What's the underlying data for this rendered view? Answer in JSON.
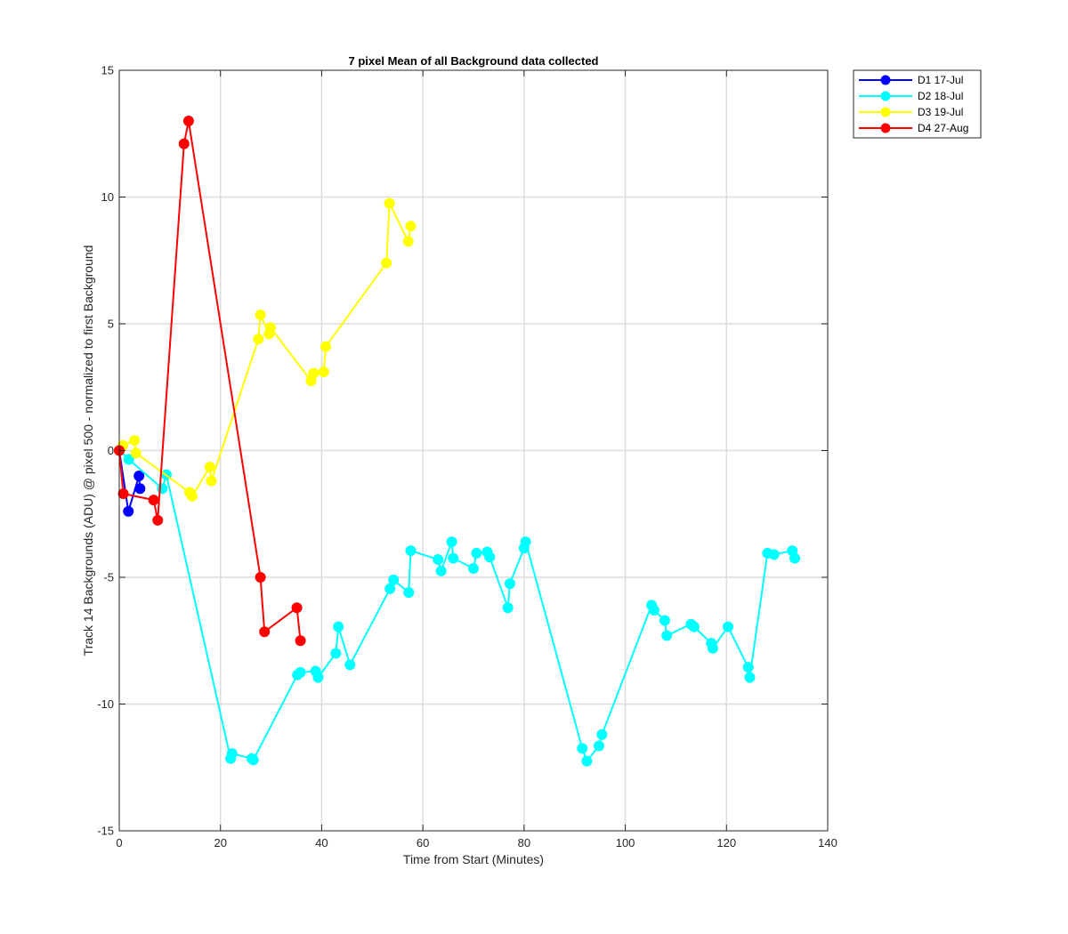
{
  "chart_data": {
    "type": "line",
    "title": "7 pixel Mean of all Background data collected",
    "xlabel": "Time from Start (Minutes)",
    "ylabel": "Track 14 Backgrounds (ADU) @ pixel 500 - normalized to first Background",
    "xlim": [
      0,
      140
    ],
    "ylim": [
      -15,
      15
    ],
    "xticks": [
      0,
      20,
      40,
      60,
      80,
      100,
      120,
      140
    ],
    "yticks": [
      -15,
      -10,
      -5,
      0,
      5,
      10,
      15
    ],
    "grid": true,
    "legend_position": "outside-top-right",
    "series": [
      {
        "name": "D1 17-Jul",
        "color": "#0000ff",
        "x": [
          0,
          1.8,
          3.9,
          4.1
        ],
        "y": [
          0,
          -2.4,
          -1.0,
          -1.5
        ]
      },
      {
        "name": "D2 18-Jul",
        "color": "#00ffff",
        "x": [
          0,
          1.9,
          8.5,
          9.3,
          22.0,
          22.3,
          26.2,
          26.5,
          35.2,
          35.8,
          38.8,
          39.3,
          42.8,
          43.3,
          45.6,
          53.5,
          54.2,
          57.2,
          57.6,
          63.0,
          63.6,
          65.7,
          66.0,
          70.0,
          70.6,
          72.7,
          73.2,
          76.8,
          77.2,
          80.0,
          80.3,
          91.5,
          92.4,
          94.8,
          95.4,
          105.2,
          105.7,
          107.8,
          108.2,
          113.0,
          113.6,
          117.0,
          117.3,
          120.3,
          124.3,
          124.6,
          128.1,
          129.4,
          133.0,
          133.5
        ],
        "y": [
          0,
          -0.35,
          -1.5,
          -0.95,
          -12.15,
          -11.95,
          -12.15,
          -12.2,
          -8.85,
          -8.75,
          -8.7,
          -8.95,
          -8.0,
          -6.95,
          -8.45,
          -5.45,
          -5.1,
          -5.6,
          -3.95,
          -4.3,
          -4.75,
          -3.6,
          -4.25,
          -4.65,
          -4.05,
          -4.0,
          -4.2,
          -6.2,
          -5.25,
          -3.85,
          -3.6,
          -11.75,
          -12.25,
          -11.65,
          -11.2,
          -6.1,
          -6.3,
          -6.7,
          -7.3,
          -6.85,
          -6.95,
          -7.6,
          -7.8,
          -6.95,
          -8.55,
          -8.95,
          -4.05,
          -4.1,
          -3.95,
          -4.25
        ]
      },
      {
        "name": "D3 19-Jul",
        "color": "#ffff00",
        "x": [
          0,
          0.7,
          3.0,
          3.3,
          13.9,
          14.4,
          17.9,
          18.2,
          27.5,
          27.9,
          29.6,
          29.9,
          37.9,
          38.4,
          40.4,
          40.8,
          52.8,
          53.4,
          57.1,
          57.6
        ],
        "y": [
          0,
          0.2,
          0.4,
          -0.1,
          -1.65,
          -1.8,
          -0.65,
          -1.2,
          4.4,
          5.35,
          4.6,
          4.85,
          2.75,
          3.05,
          3.1,
          4.1,
          7.4,
          9.75,
          8.25,
          8.85
        ]
      },
      {
        "name": "D4 27-Aug",
        "color": "#ff0000",
        "x": [
          0,
          0.8,
          6.8,
          7.6,
          12.8,
          13.7,
          27.9,
          28.7,
          35.1,
          35.8
        ],
        "y": [
          0,
          -1.7,
          -1.95,
          -2.75,
          12.1,
          13.0,
          -5.0,
          -7.15,
          -6.2,
          -7.5
        ]
      }
    ]
  }
}
